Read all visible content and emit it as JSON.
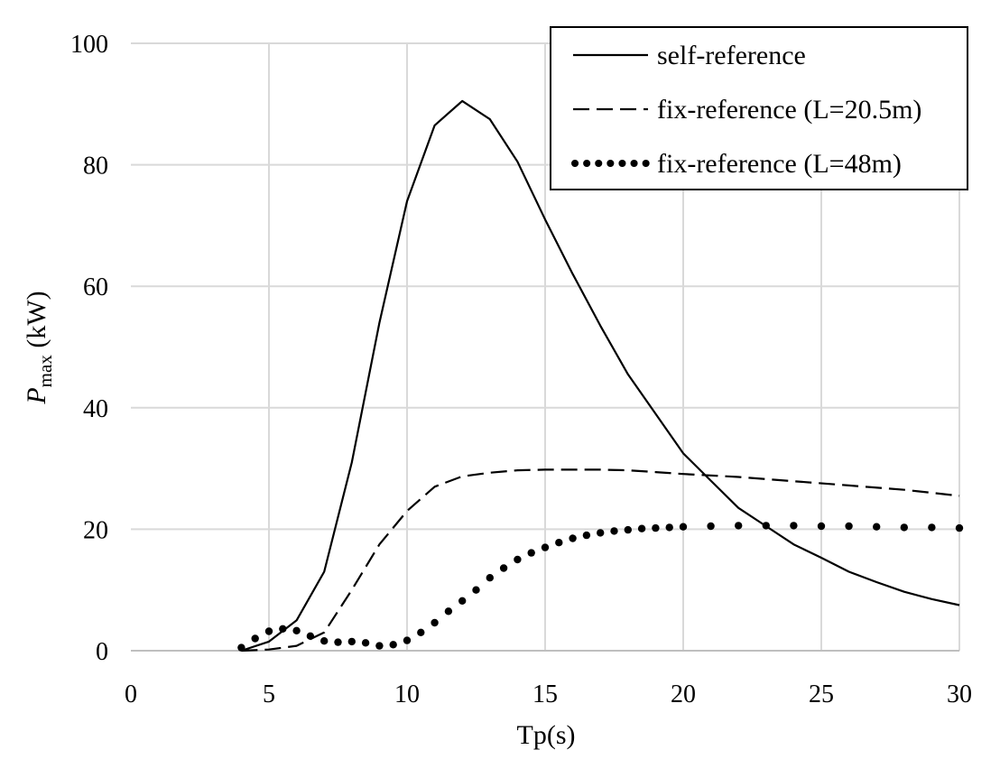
{
  "chart_data": {
    "type": "line",
    "xlabel": "Tp(s)",
    "ylabel_main": "P",
    "ylabel_subscript": "max",
    "ylabel_unit": " (kW)",
    "xlim": [
      0,
      30
    ],
    "ylim": [
      0,
      100
    ],
    "xticks": [
      0,
      5,
      10,
      15,
      20,
      25,
      30
    ],
    "yticks": [
      0,
      20,
      40,
      60,
      80,
      100
    ],
    "grid": true,
    "legend_position": "top-right",
    "series": [
      {
        "name": "self-reference",
        "style": "solid",
        "x": [
          4,
          5,
          6,
          7,
          8,
          9,
          10,
          11,
          12,
          13,
          14,
          15,
          16,
          17,
          18,
          19,
          20,
          21,
          22,
          23,
          24,
          25,
          26,
          27,
          28,
          29,
          30
        ],
        "y": [
          0,
          1.5,
          5,
          13,
          31,
          54,
          74,
          86.5,
          90.5,
          87.5,
          80.5,
          71,
          62,
          53.5,
          45.5,
          39,
          32.5,
          28,
          23.5,
          20.5,
          17.5,
          15.3,
          13,
          11.3,
          9.7,
          8.5,
          7.5
        ]
      },
      {
        "name": "fix-reference (L=20.5m)",
        "style": "dashed",
        "x": [
          4,
          5,
          6,
          7,
          8,
          9,
          10,
          11,
          12,
          13,
          14,
          15,
          16,
          17,
          18,
          19,
          20,
          22,
          24,
          26,
          28,
          30
        ],
        "y": [
          0,
          0.2,
          0.8,
          3,
          10,
          17.5,
          23,
          27,
          28.7,
          29.3,
          29.7,
          29.8,
          29.8,
          29.8,
          29.7,
          29.4,
          29.1,
          28.6,
          27.9,
          27.2,
          26.5,
          25.5
        ]
      },
      {
        "name": "fix-reference (L=48m)",
        "style": "dotted",
        "x": [
          4,
          4.5,
          5,
          5.5,
          6,
          6.5,
          7,
          7.5,
          8,
          8.5,
          9,
          9.5,
          10,
          10.5,
          11,
          11.5,
          12,
          12.5,
          13,
          13.5,
          14,
          14.5,
          15,
          15.5,
          16,
          16.5,
          17,
          17.5,
          18,
          18.5,
          19,
          19.5,
          20,
          21,
          22,
          23,
          24,
          25,
          26,
          27,
          28,
          29,
          30
        ],
        "y": [
          0.5,
          2,
          3.2,
          3.6,
          3.3,
          2.4,
          1.6,
          1.4,
          1.5,
          1.3,
          0.8,
          1,
          1.7,
          3,
          4.6,
          6.5,
          8.2,
          10,
          12,
          13.6,
          15,
          16.1,
          17,
          17.8,
          18.5,
          19,
          19.4,
          19.7,
          19.9,
          20.1,
          20.2,
          20.3,
          20.4,
          20.5,
          20.6,
          20.6,
          20.6,
          20.5,
          20.5,
          20.4,
          20.3,
          20.3,
          20.2
        ]
      }
    ]
  }
}
